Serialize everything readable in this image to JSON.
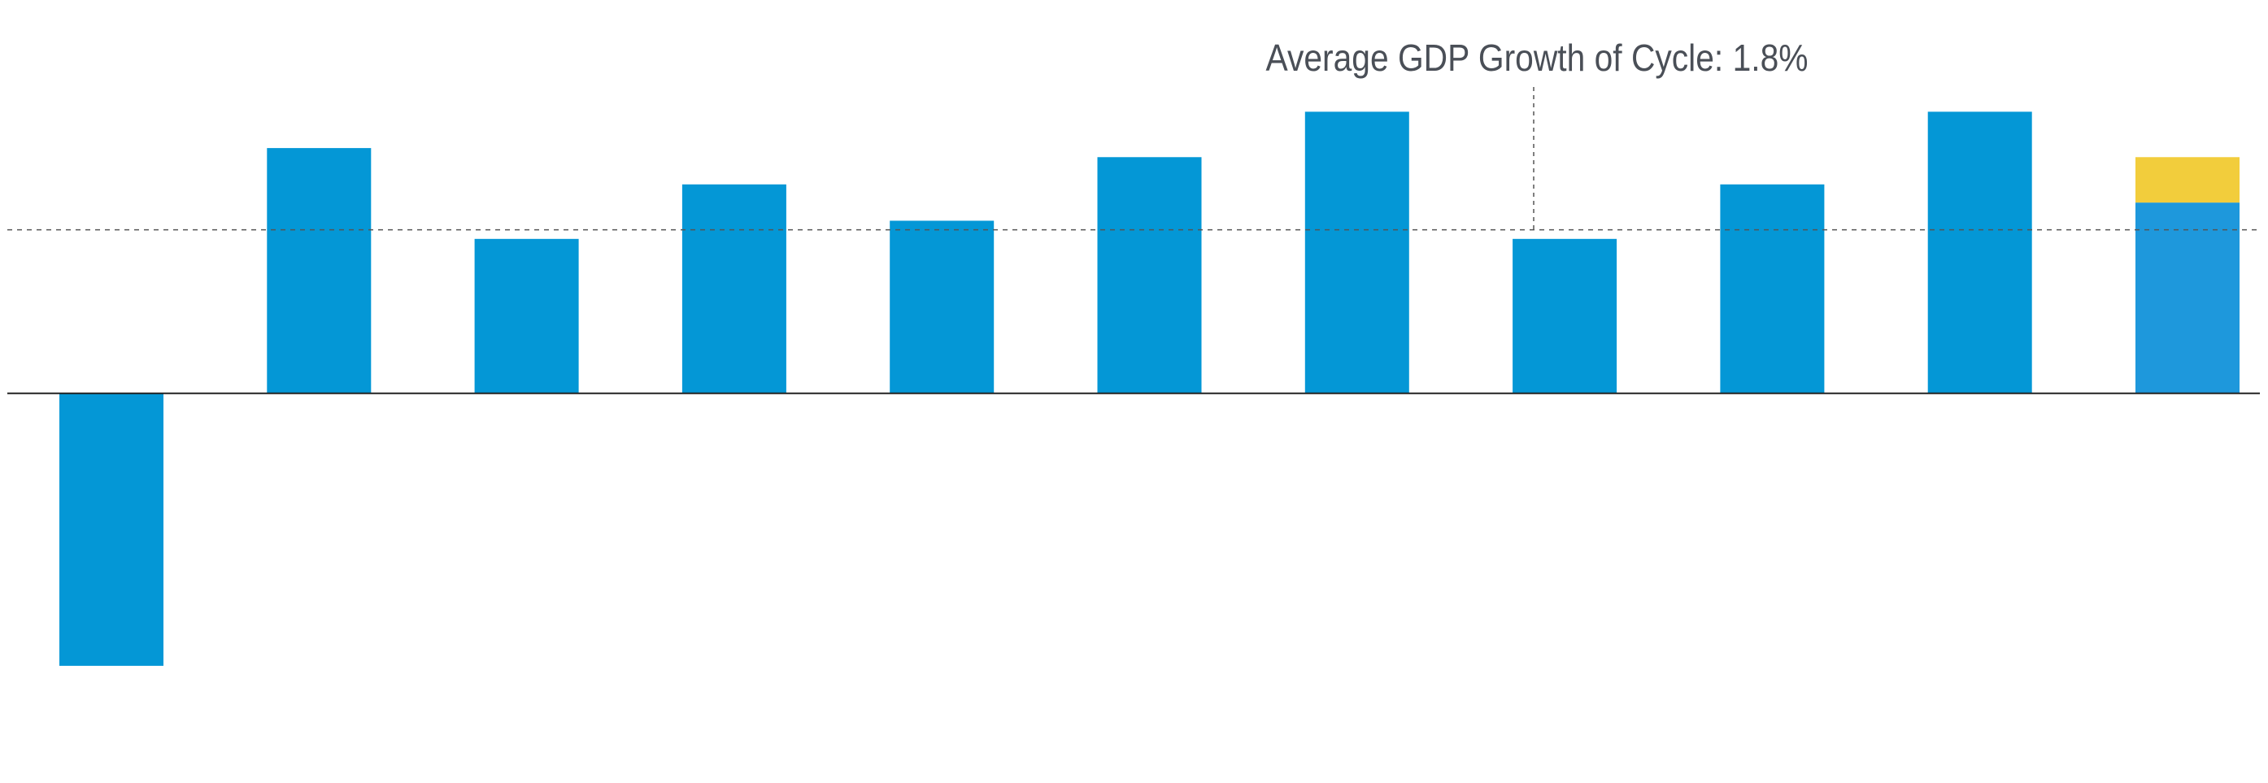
{
  "chart_data": {
    "type": "bar",
    "stacked": true,
    "categories": [
      null,
      null,
      null,
      null,
      null,
      null,
      null,
      null,
      null,
      null,
      null
    ],
    "series": [
      {
        "color": "#0497d6",
        "values": [
          -3.0,
          2.7,
          1.7,
          2.3,
          1.9,
          2.6,
          3.1,
          1.7,
          2.3,
          3.1,
          null
        ]
      },
      {
        "color": "#1e98dc",
        "values": [
          null,
          null,
          null,
          null,
          null,
          null,
          null,
          null,
          null,
          null,
          2.1
        ]
      },
      {
        "color": "#f2cd3c",
        "values": [
          null,
          null,
          null,
          null,
          null,
          null,
          null,
          null,
          null,
          null,
          0.5
        ]
      }
    ],
    "average": 1.8,
    "annotation": "Average GDP Growth of Cycle: 1.8%",
    "ylim": [
      -4.29,
      4.33
    ]
  }
}
